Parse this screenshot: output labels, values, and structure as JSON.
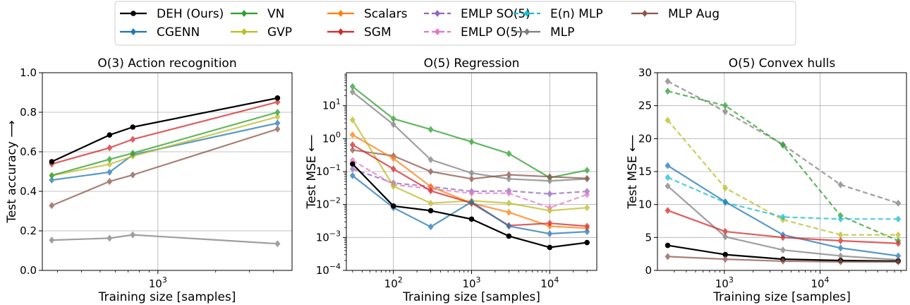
{
  "legend": {
    "placement": "top-center",
    "entries": [
      {
        "name": "DEH (Ours)",
        "color": "#000000",
        "dashed": false
      },
      {
        "name": "CGENN",
        "color": "#1f77b4",
        "dashed": false
      },
      {
        "name": "VN",
        "color": "#2ca02c",
        "dashed": false
      },
      {
        "name": "GVP",
        "color": "#bcbd22",
        "dashed": false
      },
      {
        "name": "Scalars",
        "color": "#ff7f0e",
        "dashed": false
      },
      {
        "name": "SGM",
        "color": "#d62728",
        "dashed": false
      },
      {
        "name": "EMLP SO(5)",
        "color": "#9467bd",
        "dashed": true
      },
      {
        "name": "EMLP O(5)",
        "color": "#e377c2",
        "dashed": true
      },
      {
        "name": "E(n) MLP",
        "color": "#17becf",
        "dashed": true
      },
      {
        "name": "MLP",
        "color": "#7f7f7f",
        "dashed": false
      },
      {
        "name": "MLP Aug",
        "color": "#8c564b",
        "dashed": false
      }
    ]
  },
  "chart_data": [
    {
      "type": "line",
      "title": "O(3) Action recognition",
      "xlabel": "Training size [samples]",
      "ylabel": "Test accuracy ⟶",
      "xscale": "log",
      "xlim": [
        250,
        5000
      ],
      "ylim": [
        0,
        1
      ],
      "yscale": "linear",
      "yticks": [
        0.0,
        0.2,
        0.4,
        0.6,
        0.8,
        1.0
      ],
      "ytick_labels": [
        "0.0",
        "0.2",
        "0.4",
        "0.6",
        "0.8",
        "1.0"
      ],
      "xticks": [
        1000
      ],
      "xtick_labels": [
        "10^3"
      ],
      "grid": true,
      "series": [
        {
          "name": "MLP",
          "x": [
            280,
            560,
            740,
            4200
          ],
          "y": [
            0.153,
            0.163,
            0.18,
            0.135
          ]
        },
        {
          "name": "MLP Aug",
          "x": [
            280,
            560,
            740,
            4200
          ],
          "y": [
            0.328,
            0.45,
            0.483,
            0.715
          ]
        },
        {
          "name": "CGENN",
          "x": [
            280,
            560,
            740,
            4200
          ],
          "y": [
            0.457,
            0.497,
            0.585,
            0.745
          ]
        },
        {
          "name": "GVP",
          "x": [
            280,
            560,
            740,
            4200
          ],
          "y": [
            0.48,
            0.537,
            0.578,
            0.777
          ]
        },
        {
          "name": "VN",
          "x": [
            280,
            560,
            740,
            4200
          ],
          "y": [
            0.48,
            0.562,
            0.593,
            0.8
          ]
        },
        {
          "name": "SGM",
          "x": [
            280,
            560,
            740,
            4200
          ],
          "y": [
            0.538,
            0.62,
            0.663,
            0.852
          ]
        },
        {
          "name": "DEH (Ours)",
          "x": [
            280,
            560,
            740,
            4200
          ],
          "y": [
            0.55,
            0.685,
            0.725,
            0.872
          ]
        }
      ]
    },
    {
      "type": "line",
      "title": "O(5) Regression",
      "xlabel": "Training size [samples]",
      "ylabel": "Test MSE ⟵",
      "xscale": "log",
      "yscale": "log",
      "xlim": [
        25,
        40000
      ],
      "ylim": [
        0.0001,
        100
      ],
      "xticks": [
        100,
        1000,
        10000
      ],
      "xtick_labels": [
        "10^2",
        "10^3",
        "10^4"
      ],
      "yticks": [
        0.0001,
        0.001,
        0.01,
        0.1,
        1,
        10
      ],
      "ytick_labels": [
        "10^-4",
        "10^-3",
        "10^-2",
        "10^-1",
        "10^0",
        "10^1"
      ],
      "grid": true,
      "series": [
        {
          "name": "VN",
          "x": [
            30,
            100,
            300,
            1000,
            3000,
            10000,
            30000
          ],
          "y": [
            38,
            4,
            1.9,
            0.8,
            0.35,
            0.065,
            0.11
          ]
        },
        {
          "name": "MLP",
          "x": [
            30,
            100,
            300,
            1000,
            3000,
            10000,
            30000
          ],
          "y": [
            26,
            2.7,
            0.23,
            0.09,
            0.06,
            0.052,
            0.06
          ]
        },
        {
          "name": "MLP Aug",
          "x": [
            30,
            100,
            300,
            1000,
            3000,
            10000,
            30000
          ],
          "y": [
            0.45,
            0.3,
            0.1,
            0.06,
            0.08,
            0.07,
            0.062
          ]
        },
        {
          "name": "EMLP SO(5)",
          "x": [
            30,
            100,
            300,
            1000,
            3000,
            10000,
            30000
          ],
          "y": [
            0.12,
            0.045,
            0.035,
            0.025,
            0.026,
            0.021,
            0.025
          ]
        },
        {
          "name": "EMLP O(5)",
          "x": [
            30,
            100,
            300,
            1000,
            3000,
            10000,
            30000
          ],
          "y": [
            0.22,
            0.04,
            0.03,
            0.022,
            0.022,
            0.008,
            0.02
          ]
        },
        {
          "name": "GVP",
          "x": [
            30,
            100,
            300,
            1000,
            3000,
            10000,
            30000
          ],
          "y": [
            3.7,
            0.036,
            0.011,
            0.013,
            0.011,
            0.0065,
            0.008
          ]
        },
        {
          "name": "Scalars",
          "x": [
            30,
            100,
            300,
            1000,
            3000,
            10000,
            30000
          ],
          "y": [
            1.3,
            0.25,
            0.035,
            0.011,
            0.0058,
            0.0022,
            0.0019
          ]
        },
        {
          "name": "SGM",
          "x": [
            30,
            100,
            300,
            1000,
            3000,
            10000,
            30000
          ],
          "y": [
            0.65,
            0.12,
            0.026,
            0.011,
            0.0023,
            0.0027,
            0.0022
          ]
        },
        {
          "name": "CGENN",
          "x": [
            30,
            100,
            300,
            1000,
            3000,
            10000,
            30000
          ],
          "y": [
            0.075,
            0.008,
            0.0021,
            0.012,
            0.0022,
            0.0013,
            0.0015
          ]
        },
        {
          "name": "DEH (Ours)",
          "x": [
            30,
            100,
            300,
            1000,
            3000,
            10000,
            30000
          ],
          "y": [
            0.17,
            0.009,
            0.0065,
            0.0036,
            0.0011,
            0.0005,
            0.0007
          ]
        }
      ]
    },
    {
      "type": "line",
      "title": "O(5) Convex hulls",
      "xlabel": "Training size [samples]",
      "ylabel": "Test MSE ⟵",
      "xscale": "log",
      "yscale": "linear",
      "xlim": [
        200,
        80000
      ],
      "ylim": [
        0,
        30
      ],
      "yticks": [
        0,
        5,
        10,
        15,
        20,
        25,
        30
      ],
      "ytick_labels": [
        "0",
        "5",
        "10",
        "15",
        "20",
        "25",
        "30"
      ],
      "xticks": [
        1000,
        10000
      ],
      "xtick_labels": [
        "10^3",
        "10^4"
      ],
      "grid": true,
      "series": [
        {
          "name": "MLP",
          "x": [
            256,
            1024,
            4096,
            16384,
            65536
          ],
          "y": [
            28.7,
            24.1,
            19.1,
            13.0,
            10.2
          ],
          "dashed": true
        },
        {
          "name": "VN",
          "x": [
            256,
            1024,
            4096,
            16384,
            65536
          ],
          "y": [
            27.2,
            25.0,
            19.0,
            8.3,
            4.5
          ],
          "dashed": true
        },
        {
          "name": "GVP",
          "x": [
            256,
            1024,
            4096,
            16384,
            65536
          ],
          "y": [
            22.8,
            12.5,
            7.7,
            5.4,
            5.4
          ],
          "dashed": true
        },
        {
          "name": "E(n) MLP",
          "x": [
            256,
            1024,
            4096,
            16384,
            65536
          ],
          "y": [
            14.1,
            10.3,
            8.1,
            7.8,
            7.8
          ],
          "dashed": true
        },
        {
          "name": "CGENN",
          "x": [
            256,
            1024,
            4096,
            16384,
            65536
          ],
          "y": [
            15.9,
            10.4,
            5.4,
            3.4,
            2.2
          ]
        },
        {
          "name": "MLP",
          "x": [
            256,
            1024,
            4096,
            16384,
            65536
          ],
          "y": [
            12.8,
            5.1,
            3.1,
            2.2,
            1.6
          ]
        },
        {
          "name": "SGM",
          "x": [
            256,
            1024,
            4096,
            16384,
            65536
          ],
          "y": [
            9.1,
            5.9,
            5.0,
            4.5,
            4.1
          ]
        },
        {
          "name": "DEH (Ours)",
          "x": [
            256,
            1024,
            4096,
            16384,
            65536
          ],
          "y": [
            3.8,
            2.4,
            1.7,
            1.5,
            1.4
          ]
        },
        {
          "name": "MLP Aug",
          "x": [
            256,
            1024,
            4096,
            16384,
            65536
          ],
          "y": [
            2.1,
            1.7,
            1.4,
            1.3,
            1.3
          ]
        }
      ]
    }
  ]
}
